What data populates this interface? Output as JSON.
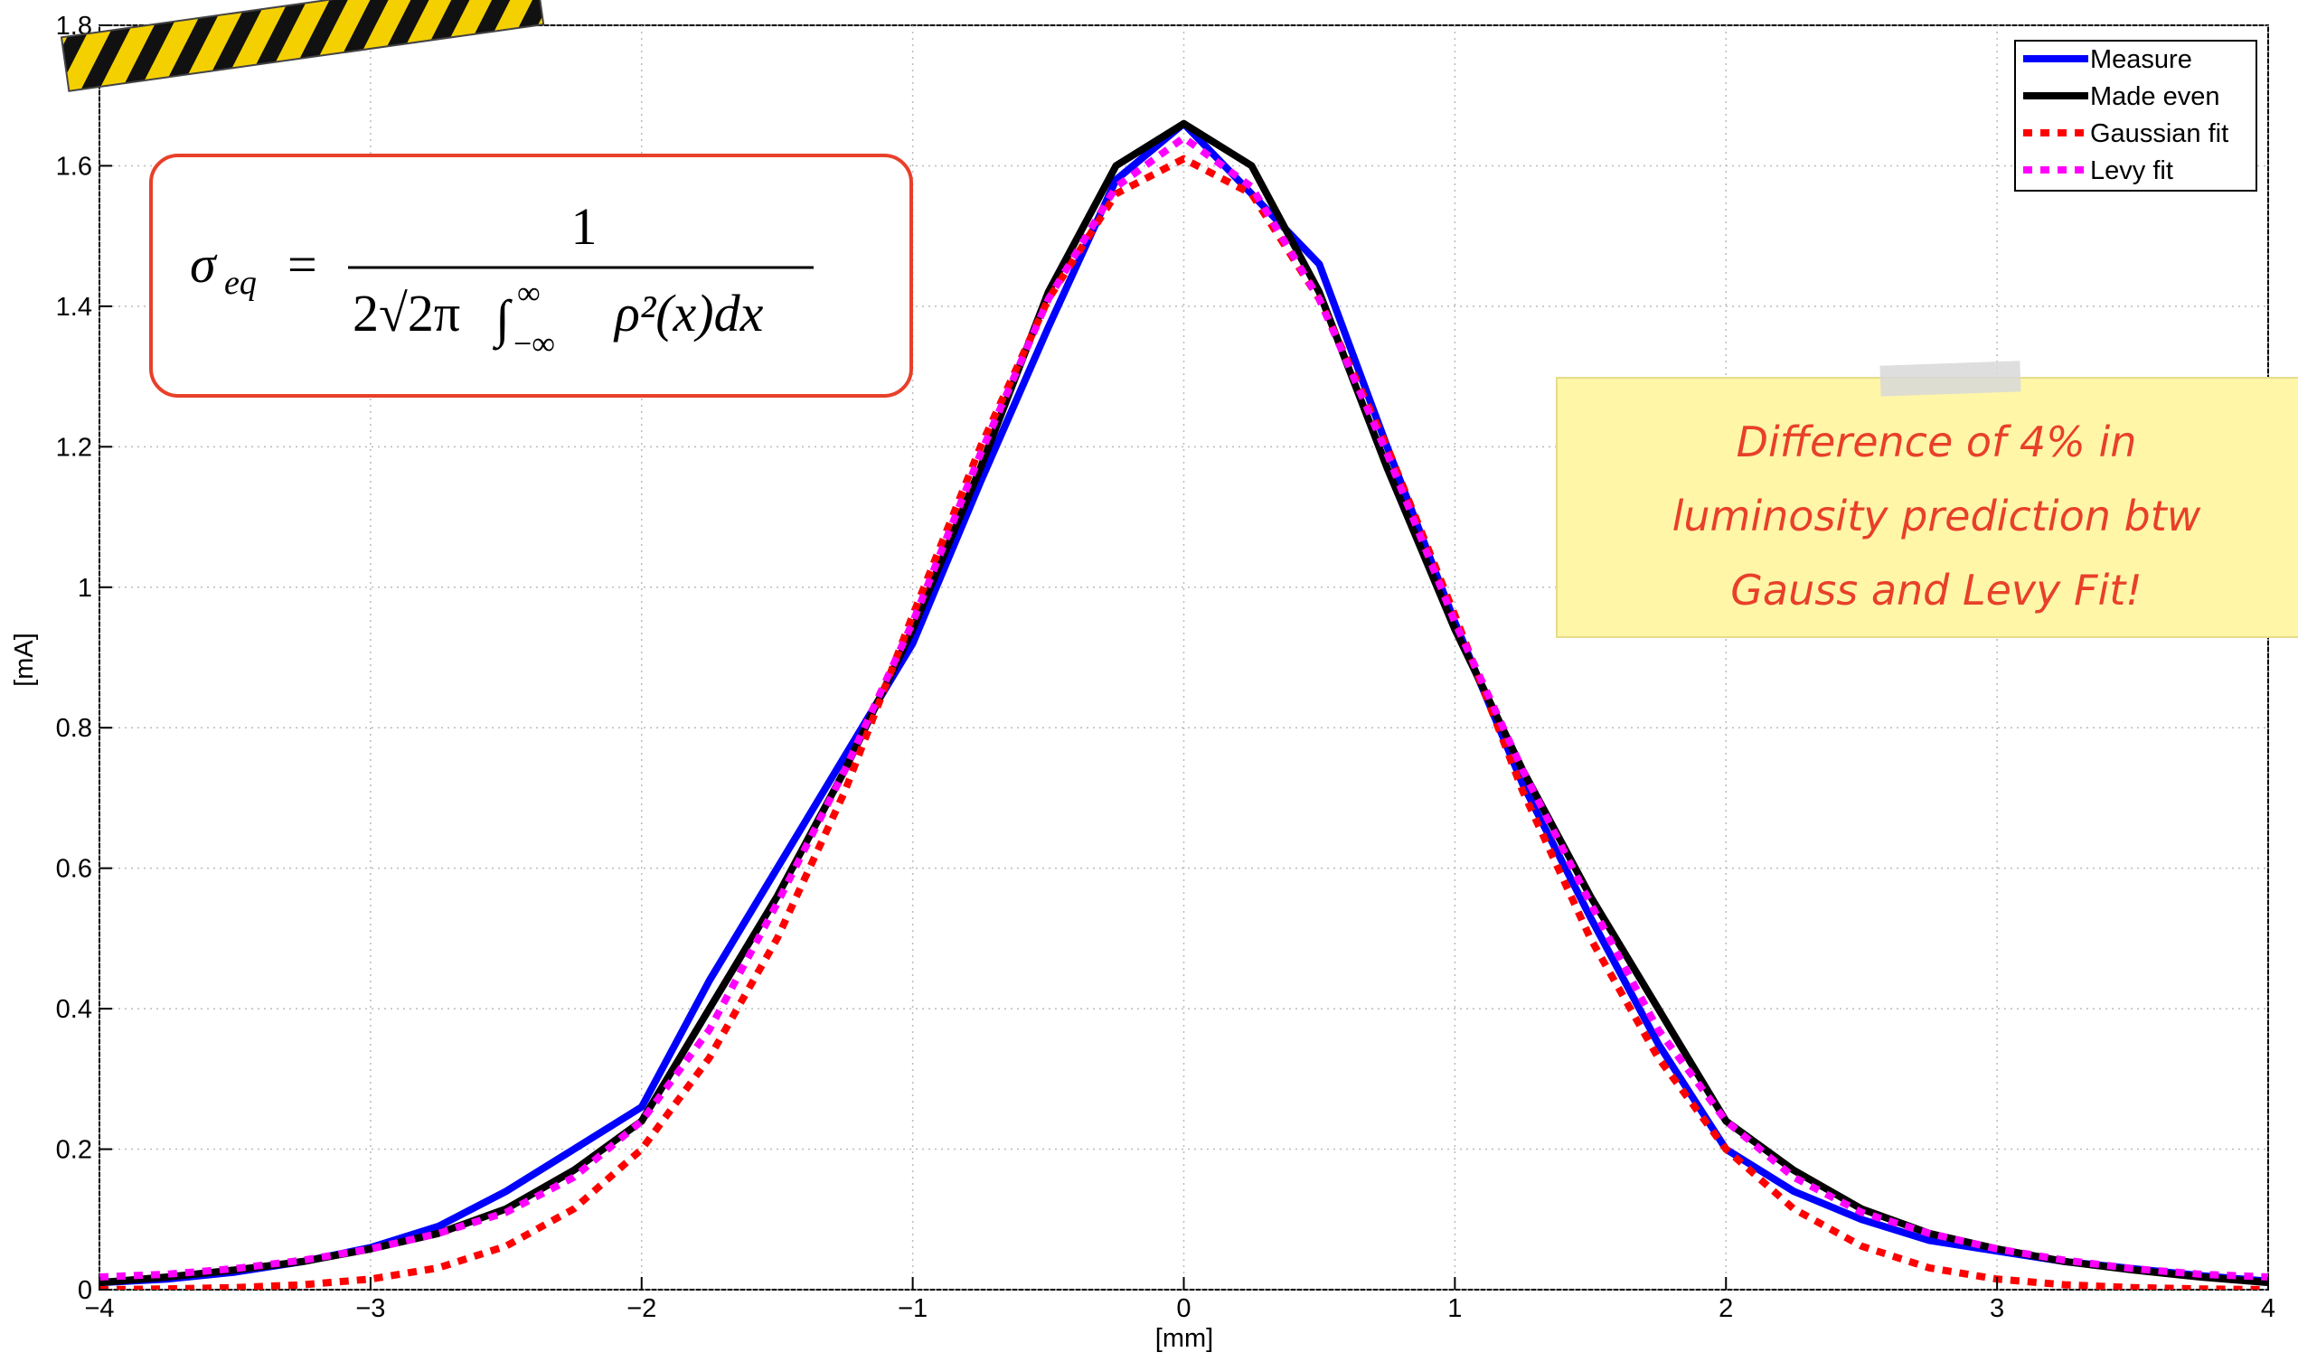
{
  "chart_data": {
    "type": "line",
    "xlabel": "[mm]",
    "ylabel": "[mA]",
    "x": [
      -4,
      -3.75,
      -3.5,
      -3.25,
      -3,
      -2.75,
      -2.5,
      -2.25,
      -2,
      -1.75,
      -1.5,
      -1.25,
      -1,
      -0.75,
      -0.5,
      -0.25,
      0,
      0.25,
      0.5,
      0.75,
      1,
      1.25,
      1.5,
      1.75,
      2,
      2.25,
      2.5,
      2.75,
      3,
      3.25,
      3.5,
      3.75,
      4
    ],
    "series": [
      {
        "name": "Measure",
        "color": "#0000ff",
        "dash": false,
        "values": [
          0.01,
          0.015,
          0.025,
          0.04,
          0.06,
          0.09,
          0.14,
          0.2,
          0.26,
          0.44,
          0.6,
          0.76,
          0.92,
          1.15,
          1.37,
          1.58,
          1.66,
          1.56,
          1.46,
          1.2,
          0.95,
          0.72,
          0.53,
          0.35,
          0.2,
          0.14,
          0.1,
          0.07,
          0.055,
          0.04,
          0.03,
          0.02,
          0.012
        ]
      },
      {
        "name": "Made even",
        "color": "#000000",
        "dash": false,
        "values": [
          0.01,
          0.018,
          0.028,
          0.04,
          0.058,
          0.08,
          0.115,
          0.17,
          0.24,
          0.4,
          0.56,
          0.74,
          0.94,
          1.17,
          1.42,
          1.6,
          1.66,
          1.6,
          1.42,
          1.17,
          0.94,
          0.74,
          0.56,
          0.4,
          0.24,
          0.17,
          0.115,
          0.08,
          0.058,
          0.04,
          0.028,
          0.018,
          0.01
        ]
      },
      {
        "name": "Gaussian fit",
        "color": "#ff0000",
        "dash": true,
        "values": [
          0,
          0.001,
          0.003,
          0.007,
          0.015,
          0.031,
          0.062,
          0.115,
          0.2,
          0.33,
          0.5,
          0.71,
          0.96,
          1.2,
          1.41,
          1.56,
          1.61,
          1.56,
          1.41,
          1.2,
          0.96,
          0.71,
          0.5,
          0.33,
          0.2,
          0.115,
          0.062,
          0.031,
          0.015,
          0.007,
          0.003,
          0.001,
          0
        ]
      },
      {
        "name": "Levy fit",
        "color": "#ff00ff",
        "dash": true,
        "values": [
          0.018,
          0.022,
          0.03,
          0.042,
          0.058,
          0.08,
          0.11,
          0.16,
          0.24,
          0.37,
          0.55,
          0.74,
          0.95,
          1.19,
          1.41,
          1.57,
          1.64,
          1.57,
          1.41,
          1.19,
          0.95,
          0.74,
          0.55,
          0.37,
          0.24,
          0.16,
          0.11,
          0.08,
          0.058,
          0.042,
          0.03,
          0.022,
          0.018
        ]
      }
    ],
    "xlim": [
      -4,
      4
    ],
    "ylim": [
      0,
      1.8
    ],
    "xticks": [
      {
        "value": -4,
        "label": "−4"
      },
      {
        "value": -3,
        "label": "−3"
      },
      {
        "value": -2,
        "label": "−2"
      },
      {
        "value": -1,
        "label": "−1"
      },
      0,
      1,
      2,
      3,
      4
    ],
    "yticks": [
      0,
      0.2,
      0.4,
      0.6,
      0.8,
      1,
      1.2,
      1.4,
      1.6,
      1.8
    ],
    "grid": true,
    "legend": "upper right"
  },
  "formula": {
    "lhs": "σ",
    "lhs_sub": "eq",
    "equals": "=",
    "numerator": "1",
    "denominator": "2√2π",
    "integral": "∫",
    "upper": "∞",
    "lower": "−∞",
    "integrand": "ρ²(x)dx"
  },
  "note": {
    "lines": [
      "Difference of 4% in",
      "luminosity prediction btw",
      "Gauss and Levy Fit!"
    ]
  }
}
